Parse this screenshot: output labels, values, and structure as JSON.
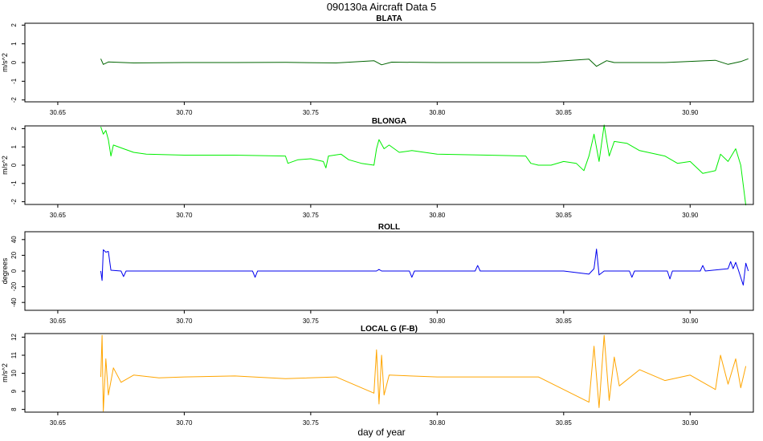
{
  "figure": {
    "title": "090130a   Aircraft Data 5",
    "xlabel": "day of year"
  },
  "chart_data": [
    {
      "type": "line",
      "title": "BLATA",
      "ylabel": "m/s^2",
      "color": "#006400",
      "xlim": [
        30.637,
        30.925
      ],
      "ylim": [
        -2.1,
        2.1
      ],
      "xticks": [
        "30.65",
        "30.70",
        "30.75",
        "30.80",
        "30.85",
        "30.90"
      ],
      "yticks": [
        "-2",
        "-1",
        "0",
        "1",
        "2"
      ],
      "series": [
        {
          "points": [
            [
              30.667,
              0.2
            ],
            [
              30.668,
              -0.1
            ],
            [
              30.67,
              0.03
            ],
            [
              30.68,
              -0.02
            ],
            [
              30.7,
              0.0
            ],
            [
              30.72,
              0.0
            ],
            [
              30.74,
              0.01
            ],
            [
              30.76,
              -0.02
            ],
            [
              30.775,
              0.1
            ],
            [
              30.778,
              -0.12
            ],
            [
              30.782,
              0.02
            ],
            [
              30.8,
              0.0
            ],
            [
              30.82,
              0.0
            ],
            [
              30.84,
              0.0
            ],
            [
              30.86,
              0.18
            ],
            [
              30.863,
              -0.2
            ],
            [
              30.867,
              0.1
            ],
            [
              30.87,
              0.0
            ],
            [
              30.89,
              0.0
            ],
            [
              30.91,
              0.12
            ],
            [
              30.915,
              -0.1
            ],
            [
              30.92,
              0.05
            ],
            [
              30.923,
              0.2
            ]
          ]
        }
      ]
    },
    {
      "type": "line",
      "title": "BLONGA",
      "ylabel": "m/s^2",
      "color": "#00ee00",
      "xlim": [
        30.637,
        30.925
      ],
      "ylim": [
        -2.15,
        2.15
      ],
      "xticks": [
        "30.65",
        "30.70",
        "30.75",
        "30.80",
        "30.85",
        "30.90"
      ],
      "yticks": [
        "-2",
        "-1",
        "0",
        "1",
        "2"
      ],
      "series": [
        {
          "points": [
            [
              30.667,
              2.1
            ],
            [
              30.668,
              1.7
            ],
            [
              30.669,
              1.9
            ],
            [
              30.67,
              1.4
            ],
            [
              30.671,
              0.5
            ],
            [
              30.672,
              1.1
            ],
            [
              30.676,
              0.9
            ],
            [
              30.68,
              0.7
            ],
            [
              30.685,
              0.6
            ],
            [
              30.7,
              0.55
            ],
            [
              30.72,
              0.55
            ],
            [
              30.74,
              0.5
            ],
            [
              30.741,
              0.1
            ],
            [
              30.745,
              0.3
            ],
            [
              30.75,
              0.35
            ],
            [
              30.755,
              0.2
            ],
            [
              30.756,
              -0.15
            ],
            [
              30.757,
              0.5
            ],
            [
              30.762,
              0.6
            ],
            [
              30.765,
              0.3
            ],
            [
              30.77,
              0.1
            ],
            [
              30.775,
              0.0
            ],
            [
              30.776,
              0.9
            ],
            [
              30.777,
              1.4
            ],
            [
              30.779,
              0.9
            ],
            [
              30.781,
              1.1
            ],
            [
              30.785,
              0.7
            ],
            [
              30.79,
              0.8
            ],
            [
              30.8,
              0.6
            ],
            [
              30.82,
              0.55
            ],
            [
              30.835,
              0.5
            ],
            [
              30.837,
              0.1
            ],
            [
              30.84,
              0.0
            ],
            [
              30.845,
              0.0
            ],
            [
              30.85,
              0.2
            ],
            [
              30.855,
              0.1
            ],
            [
              30.858,
              -0.3
            ],
            [
              30.86,
              0.5
            ],
            [
              30.862,
              1.7
            ],
            [
              30.864,
              0.2
            ],
            [
              30.866,
              2.2
            ],
            [
              30.868,
              0.5
            ],
            [
              30.87,
              1.3
            ],
            [
              30.875,
              1.2
            ],
            [
              30.88,
              0.8
            ],
            [
              30.89,
              0.5
            ],
            [
              30.895,
              0.1
            ],
            [
              30.9,
              0.2
            ],
            [
              30.905,
              -0.45
            ],
            [
              30.91,
              -0.3
            ],
            [
              30.912,
              0.6
            ],
            [
              30.915,
              0.2
            ],
            [
              30.918,
              0.9
            ],
            [
              30.92,
              0.0
            ],
            [
              30.922,
              -2.2
            ]
          ]
        }
      ]
    },
    {
      "type": "line",
      "title": "ROLL",
      "ylabel": "degrees",
      "color": "#0000ee",
      "xlim": [
        30.637,
        30.925
      ],
      "ylim": [
        -50,
        50
      ],
      "xticks": [
        "30.65",
        "30.70",
        "30.75",
        "30.80",
        "30.85",
        "30.90"
      ],
      "yticks": [
        "-40",
        "-20",
        "0",
        "20",
        "40"
      ],
      "series": [
        {
          "points": [
            [
              30.667,
              0
            ],
            [
              30.6675,
              -12
            ],
            [
              30.668,
              27
            ],
            [
              30.669,
              24
            ],
            [
              30.67,
              25
            ],
            [
              30.671,
              1
            ],
            [
              30.675,
              0
            ],
            [
              30.676,
              -7
            ],
            [
              30.677,
              0
            ],
            [
              30.7,
              0
            ],
            [
              30.727,
              0
            ],
            [
              30.728,
              -8
            ],
            [
              30.729,
              0
            ],
            [
              30.75,
              0
            ],
            [
              30.776,
              0
            ],
            [
              30.777,
              2
            ],
            [
              30.778,
              0
            ],
            [
              30.789,
              0
            ],
            [
              30.79,
              -8
            ],
            [
              30.791,
              0
            ],
            [
              30.815,
              0
            ],
            [
              30.816,
              7
            ],
            [
              30.817,
              0
            ],
            [
              30.85,
              0
            ],
            [
              30.86,
              -4
            ],
            [
              30.862,
              3
            ],
            [
              30.863,
              28
            ],
            [
              30.864,
              -5
            ],
            [
              30.866,
              0
            ],
            [
              30.876,
              0
            ],
            [
              30.877,
              -8
            ],
            [
              30.878,
              0
            ],
            [
              30.891,
              0
            ],
            [
              30.892,
              -10
            ],
            [
              30.893,
              0
            ],
            [
              30.904,
              0
            ],
            [
              30.905,
              7
            ],
            [
              30.906,
              0
            ],
            [
              30.915,
              3
            ],
            [
              30.916,
              12
            ],
            [
              30.917,
              3
            ],
            [
              30.918,
              11
            ],
            [
              30.919,
              2
            ],
            [
              30.921,
              -18
            ],
            [
              30.922,
              10
            ],
            [
              30.923,
              0
            ]
          ]
        }
      ]
    },
    {
      "type": "line",
      "title": "LOCAL G (F-B)",
      "ylabel": "m/s^2",
      "color": "#ffa500",
      "xlim": [
        30.637,
        30.925
      ],
      "ylim": [
        7.85,
        12.2
      ],
      "xticks": [
        "30.65",
        "30.70",
        "30.75",
        "30.80",
        "30.85",
        "30.90"
      ],
      "yticks": [
        "8",
        "9",
        "10",
        "11",
        "12"
      ],
      "series": [
        {
          "points": [
            [
              30.667,
              9.8
            ],
            [
              30.6675,
              12.1
            ],
            [
              30.668,
              7.9
            ],
            [
              30.669,
              10.8
            ],
            [
              30.67,
              8.8
            ],
            [
              30.672,
              10.3
            ],
            [
              30.675,
              9.5
            ],
            [
              30.68,
              9.9
            ],
            [
              30.69,
              9.75
            ],
            [
              30.7,
              9.8
            ],
            [
              30.72,
              9.85
            ],
            [
              30.74,
              9.7
            ],
            [
              30.76,
              9.8
            ],
            [
              30.775,
              8.9
            ],
            [
              30.776,
              11.3
            ],
            [
              30.777,
              8.3
            ],
            [
              30.778,
              11.0
            ],
            [
              30.779,
              8.8
            ],
            [
              30.781,
              9.9
            ],
            [
              30.8,
              9.8
            ],
            [
              30.82,
              9.8
            ],
            [
              30.84,
              9.8
            ],
            [
              30.86,
              8.4
            ],
            [
              30.862,
              11.5
            ],
            [
              30.864,
              8.1
            ],
            [
              30.866,
              12.1
            ],
            [
              30.868,
              8.5
            ],
            [
              30.87,
              10.9
            ],
            [
              30.872,
              9.3
            ],
            [
              30.88,
              10.2
            ],
            [
              30.89,
              9.6
            ],
            [
              30.9,
              9.9
            ],
            [
              30.91,
              9.1
            ],
            [
              30.912,
              11.0
            ],
            [
              30.915,
              9.4
            ],
            [
              30.918,
              10.8
            ],
            [
              30.92,
              9.2
            ],
            [
              30.922,
              10.4
            ]
          ]
        }
      ]
    }
  ]
}
